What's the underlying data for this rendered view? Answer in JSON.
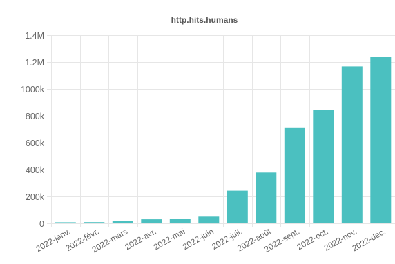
{
  "chart_data": {
    "type": "bar",
    "title": "http.hits.humans",
    "xlabel": "",
    "ylabel": "",
    "categories": [
      "2022-janv.",
      "2022-févr.",
      "2022-mars",
      "2022-avr.",
      "2022-mai",
      "2022-juin",
      "2022-juil.",
      "2022-août",
      "2022-sept.",
      "2022-oct.",
      "2022-nov.",
      "2022-déc."
    ],
    "values": [
      8000,
      9000,
      18000,
      30000,
      33000,
      50000,
      243000,
      378000,
      714000,
      845000,
      1167000,
      1238000
    ],
    "ylim": [
      0,
      1400000
    ],
    "yticks": [
      {
        "value": 0,
        "label": "0"
      },
      {
        "value": 200000,
        "label": "200k"
      },
      {
        "value": 400000,
        "label": "400k"
      },
      {
        "value": 600000,
        "label": "600k"
      },
      {
        "value": 800000,
        "label": "800k"
      },
      {
        "value": 1000000,
        "label": "1000k"
      },
      {
        "value": 1200000,
        "label": "1.2M"
      },
      {
        "value": 1400000,
        "label": "1.4M"
      }
    ],
    "grid": true,
    "legend": "none",
    "bar_color": "#4bc0c0"
  }
}
